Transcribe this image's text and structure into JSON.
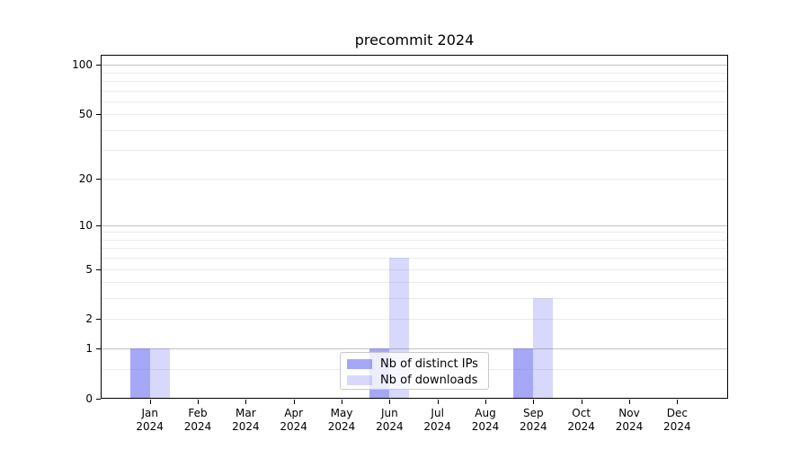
{
  "title": "precommit 2024",
  "chart_data": {
    "type": "bar",
    "title": "precommit 2024",
    "y_scale": "log1p",
    "grid": "horizontal",
    "legend_position": "lower center",
    "x_year": "2024",
    "categories": [
      "Jan",
      "Feb",
      "Mar",
      "Apr",
      "May",
      "Jun",
      "Jul",
      "Aug",
      "Sep",
      "Oct",
      "Nov",
      "Dec"
    ],
    "series": [
      {
        "name": "Nb of distinct IPs",
        "color": "rgba(100,100,243,0.57)",
        "values": [
          1,
          0,
          0,
          0,
          0,
          1,
          0,
          0,
          1,
          0,
          0,
          0
        ]
      },
      {
        "name": "Nb of downloads",
        "color": "rgba(100,100,243,0.25)",
        "values": [
          1,
          0,
          0,
          0,
          0,
          6,
          0,
          0,
          3,
          0,
          0,
          0
        ]
      }
    ],
    "y_ticks": [
      0,
      1,
      2,
      5,
      10,
      20,
      50,
      100
    ],
    "y_major_grid_ticks": [
      1,
      10,
      100
    ],
    "y_minor_grid_ticks": [
      0.5,
      2,
      3,
      4,
      5,
      6,
      7,
      8,
      9,
      20,
      30,
      40,
      50,
      60,
      70,
      80,
      90
    ],
    "ylim": [
      0,
      115
    ],
    "xlabel": "",
    "ylabel": ""
  },
  "colors": {
    "bar_distinct_ips_blended": "#aaaaf6",
    "bar_downloads_blended": "#dcdcf9",
    "grid_major": "#c2c2c2",
    "grid_minor": "#ebebeb",
    "axis": "#000000",
    "legend_border": "#c9c9c9",
    "background": "#ffffff"
  }
}
